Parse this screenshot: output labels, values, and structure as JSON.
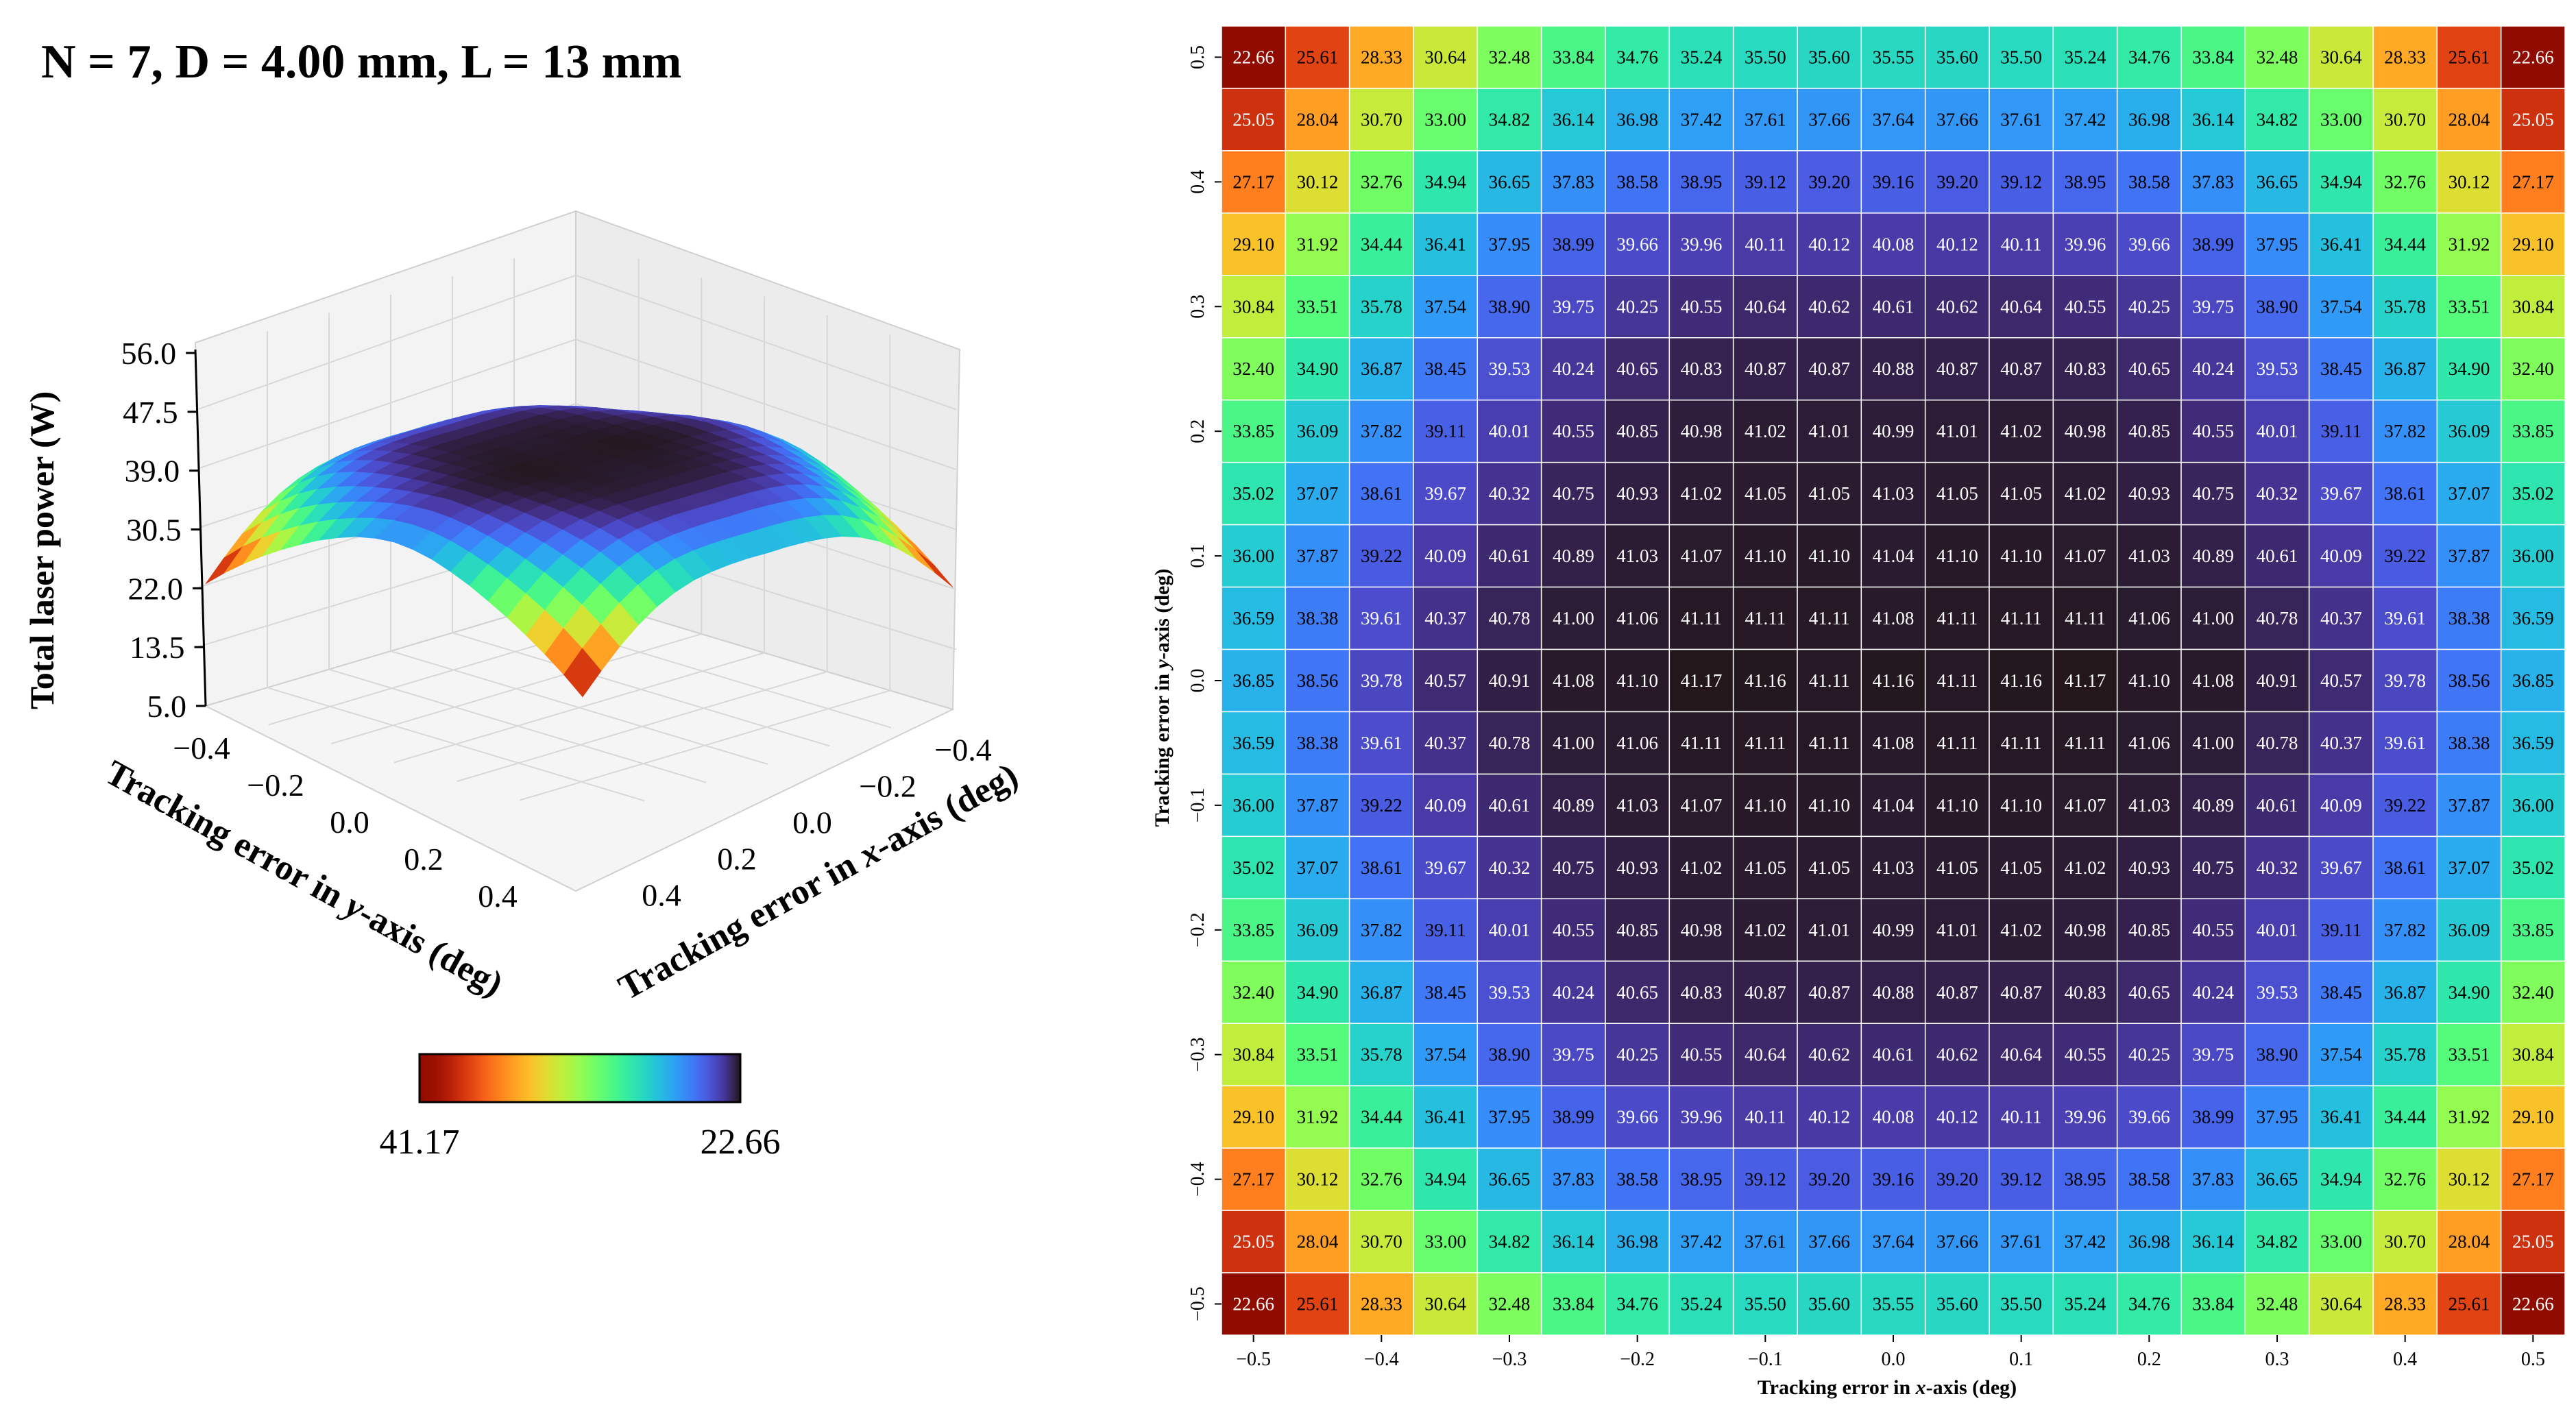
{
  "figure_title": "N = 7, D = 4.00 mm, L = 13 mm",
  "chart_data": [
    {
      "type": "surface",
      "zlabel": "Total laser power (W)",
      "xlabel": "Tracking error in x-axis (deg)",
      "ylabel": "Tracking error in y-axis (deg)",
      "x_label_parts": [
        "Tracking error in ",
        "x",
        "-axis (deg)"
      ],
      "y_label_parts": [
        "Tracking error in ",
        "y",
        "-axis (deg)"
      ],
      "zticks": [
        "56.0",
        "47.5",
        "39.0",
        "30.5",
        "22.0",
        "13.5",
        "5.0"
      ],
      "zlim": [
        5.0,
        56.0
      ],
      "xticks": [
        "−0.4",
        "−0.2",
        "0.0",
        "0.2",
        "0.4"
      ],
      "yticks": [
        "−0.4",
        "−0.2",
        "0.0",
        "0.2",
        "0.4"
      ],
      "colorbar": {
        "labels": [
          "41.17",
          "22.66"
        ],
        "min": 22.66,
        "max": 41.17,
        "colormap": "turbo_reversed"
      },
      "grid": true
    },
    {
      "type": "heatmap",
      "xlabel": "Tracking error in x-axis (deg)",
      "ylabel": "Tracking error in y-axis (deg)",
      "x_label_parts": [
        "Tracking error in ",
        "x",
        "-axis (deg)"
      ],
      "y_label_parts": [
        "Tracking error in ",
        "y",
        "-axis (deg)"
      ],
      "xticks": [
        "−0.5",
        "−0.4",
        "−0.3",
        "−0.2",
        "−0.1",
        "0.0",
        "0.1",
        "0.2",
        "0.3",
        "0.4",
        "0.5"
      ],
      "yticks": [
        "0.5",
        "0.4",
        "0.3",
        "0.2",
        "0.1",
        "0.0",
        "−0.1",
        "−0.2",
        "−0.3",
        "−0.4",
        "−0.5"
      ],
      "x_range": [
        -0.5,
        0.5
      ],
      "y_range": [
        -0.5,
        0.5
      ],
      "grid_size": 21,
      "unique_rows": [
        [
          "22.66",
          "25.61",
          "28.33",
          "30.64",
          "32.48",
          "33.84",
          "34.76",
          "35.24",
          "35.50",
          "35.60",
          "35.55",
          "35.60",
          "35.50",
          "35.24",
          "34.76",
          "33.84",
          "32.48",
          "30.64",
          "28.33",
          "25.61",
          "22.66"
        ],
        [
          "25.05",
          "28.04",
          "30.70",
          "33.00",
          "34.82",
          "36.14",
          "36.98",
          "37.42",
          "37.61",
          "37.66",
          "37.64",
          "37.66",
          "37.61",
          "37.42",
          "36.98",
          "36.14",
          "34.82",
          "33.00",
          "30.70",
          "28.04",
          "25.05"
        ],
        [
          "27.17",
          "30.12",
          "32.76",
          "34.94",
          "36.65",
          "37.83",
          "38.58",
          "38.95",
          "39.12",
          "39.20",
          "39.16",
          "39.20",
          "39.12",
          "38.95",
          "38.58",
          "37.83",
          "36.65",
          "34.94",
          "32.76",
          "30.12",
          "27.17"
        ],
        [
          "29.10",
          "31.92",
          "34.44",
          "36.41",
          "37.95",
          "38.99",
          "39.66",
          "39.96",
          "40.11",
          "40.12",
          "40.08",
          "40.12",
          "40.11",
          "39.96",
          "39.66",
          "38.99",
          "37.95",
          "36.41",
          "34.44",
          "31.92",
          "29.10"
        ],
        [
          "30.84",
          "33.51",
          "35.78",
          "37.54",
          "38.90",
          "39.75",
          "40.25",
          "40.55",
          "40.64",
          "40.62",
          "40.61",
          "40.62",
          "40.64",
          "40.55",
          "40.25",
          "39.75",
          "38.90",
          "37.54",
          "35.78",
          "33.51",
          "30.84"
        ],
        [
          "32.40",
          "34.90",
          "36.87",
          "38.45",
          "39.53",
          "40.24",
          "40.65",
          "40.83",
          "40.87",
          "40.87",
          "40.88",
          "40.87",
          "40.87",
          "40.83",
          "40.65",
          "40.24",
          "39.53",
          "38.45",
          "36.87",
          "34.90",
          "32.40"
        ],
        [
          "33.85",
          "36.09",
          "37.82",
          "39.11",
          "40.01",
          "40.55",
          "40.85",
          "40.98",
          "41.02",
          "41.01",
          "40.99",
          "41.01",
          "41.02",
          "40.98",
          "40.85",
          "40.55",
          "40.01",
          "39.11",
          "37.82",
          "36.09",
          "33.85"
        ],
        [
          "35.02",
          "37.07",
          "38.61",
          "39.67",
          "40.32",
          "40.75",
          "40.93",
          "41.02",
          "41.05",
          "41.05",
          "41.03",
          "41.05",
          "41.05",
          "41.02",
          "40.93",
          "40.75",
          "40.32",
          "39.67",
          "38.61",
          "37.07",
          "35.02"
        ],
        [
          "36.00",
          "37.87",
          "39.22",
          "40.09",
          "40.61",
          "40.89",
          "41.03",
          "41.07",
          "41.10",
          "41.10",
          "41.04",
          "41.10",
          "41.10",
          "41.07",
          "41.03",
          "40.89",
          "40.61",
          "40.09",
          "39.22",
          "37.87",
          "36.00"
        ],
        [
          "36.59",
          "38.38",
          "39.61",
          "40.37",
          "40.78",
          "41.00",
          "41.06",
          "41.11",
          "41.11",
          "41.11",
          "41.08",
          "41.11",
          "41.11",
          "41.11",
          "41.06",
          "41.00",
          "40.78",
          "40.37",
          "39.61",
          "38.38",
          "36.59"
        ],
        [
          "36.85",
          "38.56",
          "39.78",
          "40.57",
          "40.91",
          "41.08",
          "41.10",
          "41.17",
          "41.16",
          "41.11",
          "41.16",
          "41.11",
          "41.16",
          "41.17",
          "41.10",
          "41.08",
          "40.91",
          "40.57",
          "39.78",
          "38.56",
          "36.85"
        ]
      ],
      "row_mirror_note": "rows 12-21 mirror rows 10-1",
      "colorscale": {
        "min": 22.66,
        "max": 41.17
      }
    }
  ]
}
